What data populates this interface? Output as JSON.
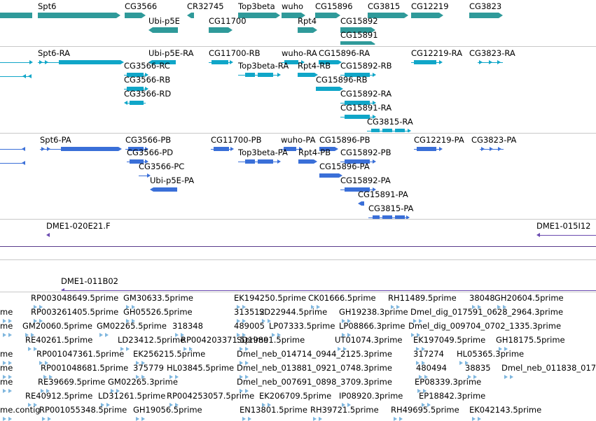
{
  "colors": {
    "gene": "#2f9a9a",
    "mrna": "#10a6c8",
    "protein": "#3a6fd8",
    "clone": "#6a4ab0",
    "est": "#7eb6de",
    "separator": "#c8c8c8"
  },
  "tracks": {
    "genes": {
      "features": [
        {
          "label": "Spt6",
          "strand": "right",
          "kind": "bar"
        },
        {
          "label": "CG3566",
          "strand": "right",
          "kind": "bar"
        },
        {
          "label": "CR32745",
          "strand": "left",
          "kind": "bar"
        },
        {
          "label": "Top3beta",
          "strand": "right",
          "kind": "bar"
        },
        {
          "label": "wuho",
          "strand": "right",
          "kind": "bar"
        },
        {
          "label": "CG15896",
          "strand": "right",
          "kind": "bar"
        },
        {
          "label": "CG3815",
          "strand": "right",
          "kind": "bar"
        },
        {
          "label": "CG12219",
          "strand": "right",
          "kind": "bar"
        },
        {
          "label": "CG3823",
          "strand": "right",
          "kind": "bar"
        },
        {
          "label": "Ubi-p5E",
          "strand": "left",
          "kind": "bar"
        },
        {
          "label": "CG11700",
          "strand": "right",
          "kind": "bar"
        },
        {
          "label": "Rpt4",
          "strand": "right",
          "kind": "bar"
        },
        {
          "label": "CG15892",
          "strand": "right",
          "kind": "bar"
        },
        {
          "label": "CG15891",
          "strand": "right",
          "kind": "bar"
        },
        {
          "label": "",
          "strand": "right",
          "kind": "bar"
        }
      ]
    },
    "transcripts": {
      "features": [
        {
          "label": "",
          "strand": "right"
        },
        {
          "label": "Spt6-RA",
          "strand": "right"
        },
        {
          "label": "Ubi-p5E-RA",
          "strand": "left"
        },
        {
          "label": "CG11700-RB",
          "strand": "right"
        },
        {
          "label": "wuho-RA",
          "strand": "right"
        },
        {
          "label": "CG15896-RA",
          "strand": "right"
        },
        {
          "label": "CG12219-RA",
          "strand": "right"
        },
        {
          "label": "CG3823-RA",
          "strand": "right"
        },
        {
          "label": "",
          "strand": "left"
        },
        {
          "label": "CG3566-RC",
          "strand": "right"
        },
        {
          "label": "Top3beta-RA",
          "strand": "right"
        },
        {
          "label": "Rpt4-RB",
          "strand": "right"
        },
        {
          "label": "CG15892-RB",
          "strand": "right"
        },
        {
          "label": "CG3566-RB",
          "strand": "right"
        },
        {
          "label": "CG15896-RB",
          "strand": "right"
        },
        {
          "label": "CG3566-RD",
          "strand": "left"
        },
        {
          "label": "CG15892-RA",
          "strand": "right"
        },
        {
          "label": "CG15891-RA",
          "strand": "right"
        },
        {
          "label": "CG3815-RA",
          "strand": "right"
        }
      ]
    },
    "proteins": {
      "features": [
        {
          "label": "",
          "strand": "left"
        },
        {
          "label": "Spt6-PA",
          "strand": "right"
        },
        {
          "label": "CG3566-PB",
          "strand": "right"
        },
        {
          "label": "CG11700-PB",
          "strand": "right"
        },
        {
          "label": "wuho-PA",
          "strand": "right"
        },
        {
          "label": "CG15896-PB",
          "strand": "right"
        },
        {
          "label": "CG12219-PA",
          "strand": "right"
        },
        {
          "label": "CG3823-PA",
          "strand": "right"
        },
        {
          "label": "",
          "strand": "left"
        },
        {
          "label": "CG3566-PD",
          "strand": "right"
        },
        {
          "label": "Top3beta-PA",
          "strand": "right"
        },
        {
          "label": "Rpt4-PB",
          "strand": "right"
        },
        {
          "label": "CG15892-PB",
          "strand": "right"
        },
        {
          "label": "CG3566-PC",
          "strand": "right"
        },
        {
          "label": "CG15896-PA",
          "strand": "right"
        },
        {
          "label": "Ubi-p5E-PA",
          "strand": "left"
        },
        {
          "label": "CG15892-PA",
          "strand": "right"
        },
        {
          "label": "CG15891-PA",
          "strand": "left"
        },
        {
          "label": "CG3815-PA",
          "strand": "right"
        }
      ]
    },
    "clones": {
      "features": [
        {
          "label": "DME1-020E21.F",
          "strand": "left"
        },
        {
          "label": "DME1-015I12",
          "strand": "left"
        },
        {
          "label": "DME1-011B02",
          "strand": "left"
        }
      ]
    },
    "ests": {
      "rows": [
        [
          "RP003048649.5prime",
          "GM30633.5prime",
          "EK194250.5prime",
          "CK01666.5prime",
          "RH11489.5prime",
          "38048",
          "GH20604.5prime"
        ],
        [
          "me",
          "RP003261405.5prime",
          "GH05526.5prime",
          "313512",
          "SD22944.5prime",
          "GH19238.3prime",
          "Dmel_dig_017591_0628_2964.3prime"
        ],
        [
          "me",
          "GM20060.5prime",
          "GM02265.5prime",
          "318348",
          "489005",
          "LP07333.5prime",
          "LP08866.3prime",
          "Dmel_dig_009704_0702_1335.3prime"
        ],
        [
          "RE40261.5prime",
          "LD23412.5prime",
          "RP004203371.5prime",
          "SD19891.5prime",
          "UT01074.3prime",
          "EK197049.5prime",
          "GH18175.5prime"
        ],
        [
          "me",
          "RP001047361.5prime",
          "EK256215.5prime",
          "Dmel_neb_014714_0944_2125.3prime",
          "317274",
          "HL05365.3prime"
        ],
        [
          "me",
          "RP001048681.5prime",
          "375779",
          "HL03845.5prime",
          "Dmel_neb_013881_0921_0748.3prime",
          "480494",
          "38835",
          "Dmel_neb_011838_017"
        ],
        [
          "me",
          "RE39669.5prime",
          "GM02265.3prime",
          "Dmel_neb_007691_0898_3709.3prime",
          "EP08339.3prime"
        ],
        [
          "RE40912.5prime",
          "LD31261.5prime",
          "RP004253057.5prime",
          "EK206709.5prime",
          "IP08920.3prime",
          "EP18842.3prime"
        ],
        [
          "me.contig",
          "RP001055348.5prime",
          "GH19056.5prime",
          "EN13801.5prime",
          "RH39721.5prime",
          "RH49695.5prime",
          "EK042143.5prime"
        ]
      ]
    }
  }
}
